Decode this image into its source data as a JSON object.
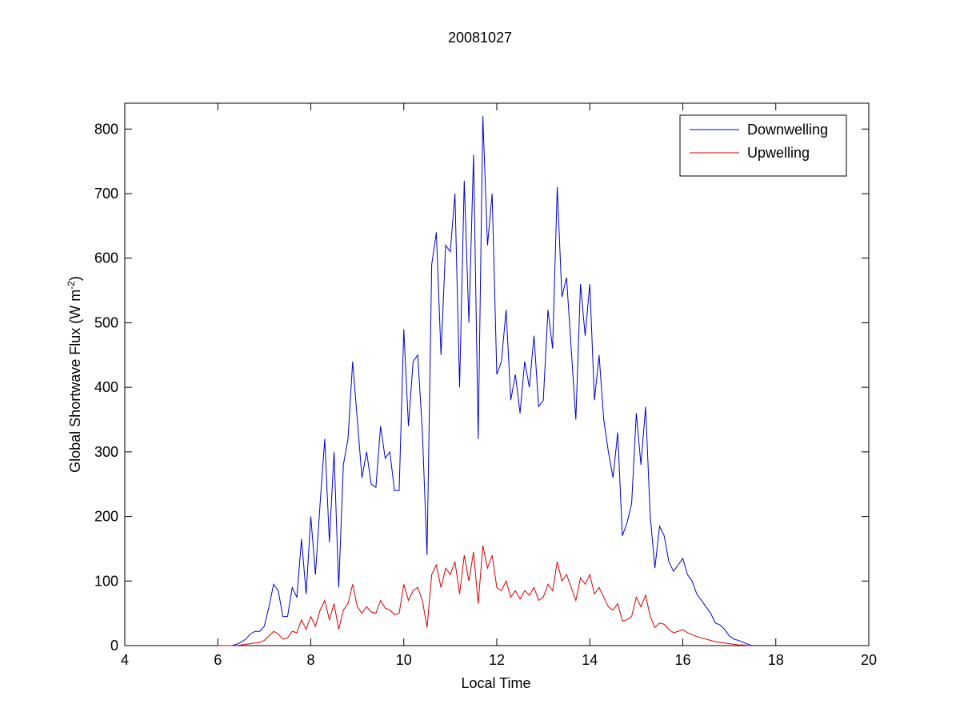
{
  "chart_data": {
    "type": "line",
    "title": "20081027",
    "xlabel": "Local Time",
    "ylabel": [
      "Global Shortwave Flux (W m",
      "-2",
      ")"
    ],
    "xlim": [
      4,
      20
    ],
    "xticks": [
      4,
      6,
      8,
      10,
      12,
      14,
      16,
      18,
      20
    ],
    "ylim": [
      0,
      840
    ],
    "yticks": [
      0,
      100,
      200,
      300,
      400,
      500,
      600,
      700,
      800
    ],
    "grid": false,
    "legend": "upper right",
    "x": [
      6.0,
      6.1,
      6.2,
      6.3,
      6.4,
      6.5,
      6.6,
      6.7,
      6.8,
      6.9,
      7.0,
      7.1,
      7.2,
      7.3,
      7.4,
      7.5,
      7.6,
      7.7,
      7.8,
      7.9,
      8.0,
      8.1,
      8.2,
      8.3,
      8.4,
      8.5,
      8.6,
      8.7,
      8.8,
      8.9,
      9.0,
      9.1,
      9.2,
      9.3,
      9.4,
      9.5,
      9.6,
      9.7,
      9.8,
      9.9,
      10.0,
      10.1,
      10.2,
      10.3,
      10.4,
      10.5,
      10.6,
      10.7,
      10.8,
      10.9,
      11.0,
      11.1,
      11.2,
      11.3,
      11.4,
      11.5,
      11.6,
      11.7,
      11.8,
      11.9,
      12.0,
      12.1,
      12.2,
      12.3,
      12.4,
      12.5,
      12.6,
      12.7,
      12.8,
      12.9,
      13.0,
      13.1,
      13.2,
      13.3,
      13.4,
      13.5,
      13.6,
      13.7,
      13.8,
      13.9,
      14.0,
      14.1,
      14.2,
      14.3,
      14.4,
      14.5,
      14.6,
      14.7,
      14.8,
      14.9,
      15.0,
      15.1,
      15.2,
      15.3,
      15.4,
      15.5,
      15.6,
      15.7,
      15.8,
      15.9,
      16.0,
      16.1,
      16.2,
      16.3,
      16.4,
      16.5,
      16.6,
      16.7,
      16.8,
      16.9,
      17.0,
      17.1,
      17.2,
      17.3,
      17.4,
      17.5
    ],
    "series": [
      {
        "name": "Downwelling",
        "color": "#0000c8",
        "values": [
          0,
          0,
          0,
          0,
          2,
          5,
          10,
          18,
          22,
          22,
          30,
          60,
          95,
          85,
          45,
          45,
          90,
          75,
          165,
          80,
          200,
          110,
          220,
          320,
          160,
          300,
          90,
          280,
          320,
          440,
          350,
          260,
          300,
          250,
          245,
          340,
          290,
          300,
          240,
          240,
          490,
          340,
          440,
          450,
          330,
          140,
          590,
          640,
          450,
          620,
          610,
          700,
          400,
          720,
          500,
          760,
          320,
          820,
          620,
          700,
          420,
          440,
          520,
          380,
          420,
          360,
          440,
          400,
          480,
          370,
          380,
          520,
          460,
          710,
          540,
          570,
          460,
          350,
          560,
          480,
          560,
          380,
          450,
          350,
          300,
          260,
          330,
          170,
          190,
          220,
          360,
          280,
          370,
          200,
          120,
          185,
          170,
          130,
          115,
          125,
          135,
          110,
          100,
          80,
          70,
          60,
          50,
          35,
          32,
          25,
          15,
          10,
          8,
          5,
          2,
          0
        ]
      },
      {
        "name": "Upwelling",
        "color": "#d40000",
        "values": [
          0,
          0,
          0,
          0,
          0,
          1,
          2,
          3,
          4,
          5,
          8,
          15,
          22,
          18,
          10,
          12,
          22,
          20,
          40,
          25,
          45,
          30,
          55,
          70,
          40,
          65,
          25,
          55,
          65,
          95,
          60,
          50,
          60,
          52,
          50,
          70,
          58,
          55,
          48,
          50,
          95,
          70,
          85,
          90,
          70,
          28,
          110,
          125,
          90,
          120,
          110,
          130,
          80,
          140,
          100,
          145,
          65,
          155,
          120,
          140,
          90,
          85,
          100,
          75,
          85,
          72,
          85,
          78,
          90,
          70,
          75,
          95,
          85,
          130,
          100,
          110,
          90,
          70,
          105,
          95,
          110,
          80,
          90,
          75,
          60,
          55,
          65,
          38,
          40,
          45,
          75,
          60,
          78,
          45,
          28,
          35,
          33,
          25,
          20,
          22,
          25,
          20,
          17,
          14,
          12,
          10,
          8,
          6,
          5,
          4,
          3,
          2,
          1,
          1,
          0,
          0
        ]
      }
    ]
  }
}
